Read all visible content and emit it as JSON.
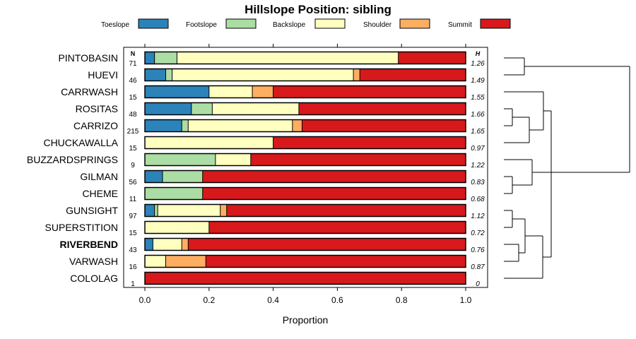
{
  "chart_data": {
    "type": "bar",
    "orientation": "horizontal-stacked",
    "title": "Hillslope Position: sibling",
    "xlabel": "Proportion",
    "ylabel": "",
    "xlim": [
      0,
      1
    ],
    "xticks": [
      "0.0",
      "0.2",
      "0.4",
      "0.6",
      "0.8",
      "1.0"
    ],
    "n_header": "N",
    "h_header": "H",
    "highlight": "RIVERBEND",
    "colors": {
      "Toeslope": "#2b83ba",
      "Footslope": "#abdda4",
      "Backslope": "#ffffbf",
      "Shoulder": "#fdae61",
      "Summit": "#d7191c"
    },
    "legend": [
      "Toeslope",
      "Footslope",
      "Backslope",
      "Shoulder",
      "Summit"
    ],
    "categories": [
      "PINTOBASIN",
      "HUEVI",
      "CARRWASH",
      "ROSITAS",
      "CARRIZO",
      "CHUCKAWALLA",
      "BUZZARDSPRINGS",
      "GILMAN",
      "CHEME",
      "GUNSIGHT",
      "SUPERSTITION",
      "RIVERBEND",
      "VARWASH",
      "COLOLAG"
    ],
    "n": [
      "71",
      "46",
      "15",
      "48",
      "215",
      "15",
      "9",
      "56",
      "11",
      "97",
      "15",
      "43",
      "16",
      "1"
    ],
    "h": [
      "1.26",
      "1.49",
      "1.55",
      "1.66",
      "1.65",
      "0.97",
      "1.22",
      "0.83",
      "0.68",
      "1.12",
      "0.72",
      "0.76",
      "0.87",
      "0"
    ],
    "series": [
      {
        "name": "Toeslope",
        "values": [
          0.03,
          0.065,
          0.2,
          0.145,
          0.115,
          0,
          0,
          0.055,
          0,
          0.03,
          0,
          0.025,
          0,
          0
        ]
      },
      {
        "name": "Footslope",
        "values": [
          0.07,
          0.02,
          0,
          0.065,
          0.02,
          0,
          0.22,
          0.125,
          0.18,
          0.01,
          0,
          0,
          0,
          0
        ]
      },
      {
        "name": "Backslope",
        "values": [
          0.69,
          0.565,
          0.135,
          0.27,
          0.325,
          0.4,
          0.11,
          0,
          0,
          0.195,
          0.2,
          0.09,
          0.065,
          0
        ]
      },
      {
        "name": "Shoulder",
        "values": [
          0,
          0.02,
          0.065,
          0,
          0.03,
          0,
          0,
          0,
          0,
          0.02,
          0,
          0.02,
          0.125,
          0
        ]
      },
      {
        "name": "Summit",
        "values": [
          0.21,
          0.33,
          0.6,
          0.52,
          0.51,
          0.6,
          0.67,
          0.82,
          0.82,
          0.745,
          0.8,
          0.865,
          0.81,
          1.0
        ]
      }
    ],
    "dendrogram": "hierarchical clustering of sites shown to the right of the bars"
  }
}
